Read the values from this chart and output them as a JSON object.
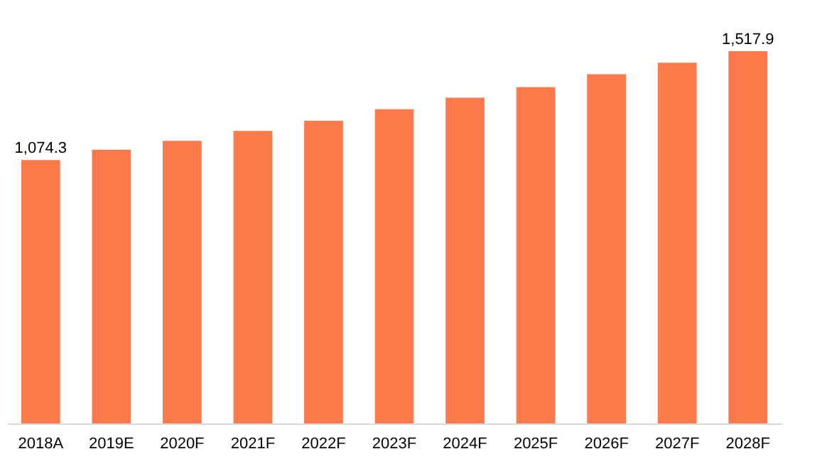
{
  "chart_data": {
    "type": "bar",
    "categories": [
      "2018A",
      "2019E",
      "2020F",
      "2021F",
      "2022F",
      "2023F",
      "2024F",
      "2025F",
      "2026F",
      "2027F",
      "2028F"
    ],
    "values": [
      1074.3,
      1116,
      1152,
      1193,
      1234,
      1281,
      1328,
      1371,
      1424,
      1471,
      1517.9
    ],
    "value_labels": [
      "1,074.3",
      null,
      null,
      null,
      null,
      null,
      null,
      null,
      null,
      null,
      "1,517.9"
    ],
    "tick_labels": "x",
    "color": "#fe7a4a"
  }
}
